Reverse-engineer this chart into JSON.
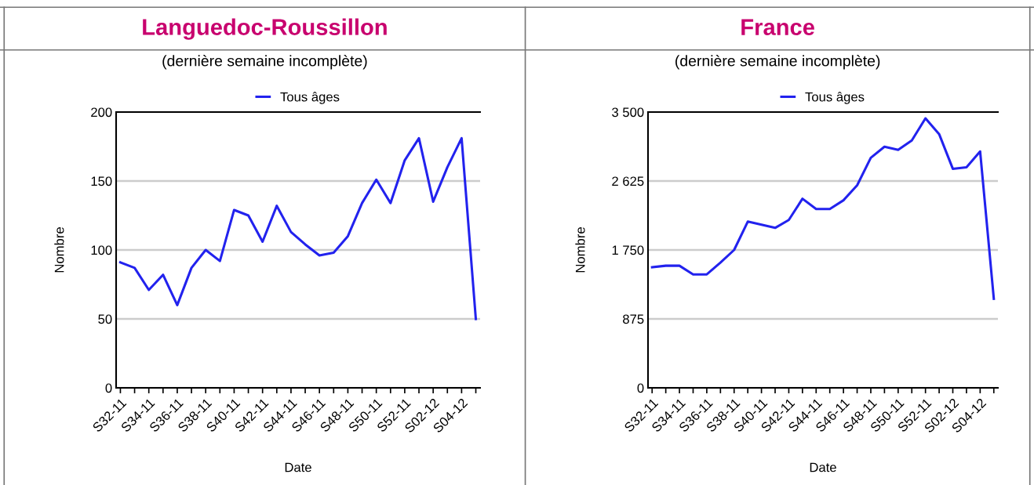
{
  "chart_data": [
    {
      "type": "line",
      "title": "Languedoc-Roussillon",
      "subtitle": "(dernière semaine incomplète)",
      "xlabel": "Date",
      "ylabel": "Nombre",
      "categories": [
        "S32-11",
        null,
        "S34-11",
        null,
        "S36-11",
        null,
        "S38-11",
        null,
        "S40-11",
        null,
        "S42-11",
        null,
        "S44-11",
        null,
        "S46-11",
        null,
        "S48-11",
        null,
        "S50-11",
        null,
        "S52-11",
        null,
        "S02-12",
        null,
        "S04-12",
        null
      ],
      "series": [
        {
          "name": "Tous âges",
          "color": "#2222ee",
          "values": [
            91,
            87,
            71,
            82,
            60,
            87,
            100,
            92,
            129,
            125,
            106,
            132,
            113,
            104,
            96,
            98,
            110,
            134,
            151,
            134,
            165,
            181,
            135,
            160,
            181,
            50
          ]
        }
      ],
      "ylim": [
        0,
        200
      ],
      "yticks": [
        0,
        50,
        100,
        150,
        200
      ],
      "grid": "y",
      "legend": "top"
    },
    {
      "type": "line",
      "title": "France",
      "subtitle": "(dernière semaine incomplète)",
      "xlabel": "Date",
      "ylabel": "Nombre",
      "categories": [
        "S32-11",
        null,
        "S34-11",
        null,
        "S36-11",
        null,
        "S38-11",
        null,
        "S40-11",
        null,
        "S42-11",
        null,
        "S44-11",
        null,
        "S46-11",
        null,
        "S48-11",
        null,
        "S50-11",
        null,
        "S52-11",
        null,
        "S02-12",
        null,
        "S04-12",
        null
      ],
      "series": [
        {
          "name": "Tous âges",
          "color": "#2222ee",
          "values": [
            1530,
            1550,
            1550,
            1440,
            1440,
            1590,
            1750,
            2110,
            2070,
            2030,
            2130,
            2400,
            2270,
            2270,
            2380,
            2570,
            2920,
            3060,
            3020,
            3140,
            3420,
            3220,
            2780,
            2800,
            3000,
            1130
          ]
        }
      ],
      "ylim": [
        0,
        3500
      ],
      "yticks": [
        0,
        {
          "value": 875,
          "label": "875"
        },
        {
          "value": 1750,
          "label": "1 750"
        },
        {
          "value": 2625,
          "label": "2 625"
        },
        {
          "value": 3500,
          "label": "3 500"
        }
      ],
      "grid": "y",
      "legend": "top"
    }
  ]
}
